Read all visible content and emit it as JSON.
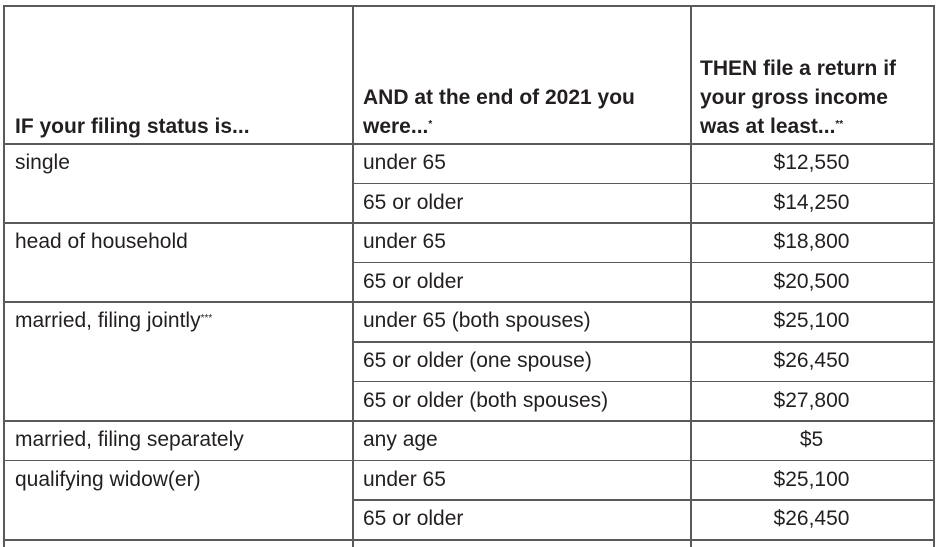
{
  "table": {
    "header": [
      {
        "text": "IF your filing status is..."
      },
      {
        "text": "AND at the end of 2021 you were...",
        "note": "*"
      },
      {
        "text": "THEN file a return if your gross income was at least...",
        "note": "**"
      }
    ],
    "groups": [
      {
        "status": "single",
        "rows": [
          {
            "age": "under 65",
            "amount": "$12,550"
          },
          {
            "age": "65 or older",
            "amount": "$14,250"
          }
        ]
      },
      {
        "status": "head of household",
        "rows": [
          {
            "age": "under 65",
            "amount": "$18,800"
          },
          {
            "age": "65 or older",
            "amount": "$20,500"
          }
        ]
      },
      {
        "status": "married, filing jointly",
        "note": "***",
        "rows": [
          {
            "age": "under 65 (both spouses)",
            "amount": "$25,100"
          },
          {
            "age": "65 or older (one spouse)",
            "amount": "$26,450"
          },
          {
            "age": "65 or older (both spouses)",
            "amount": "$27,800"
          }
        ]
      },
      {
        "status": "married, filing separately",
        "rows": [
          {
            "age": "any age",
            "amount": "$5"
          }
        ]
      },
      {
        "status": "qualifying widow(er)",
        "rows": [
          {
            "age": "under 65",
            "amount": "$25,100"
          },
          {
            "age": "65 or older",
            "amount": "$26,450"
          }
        ]
      }
    ]
  }
}
